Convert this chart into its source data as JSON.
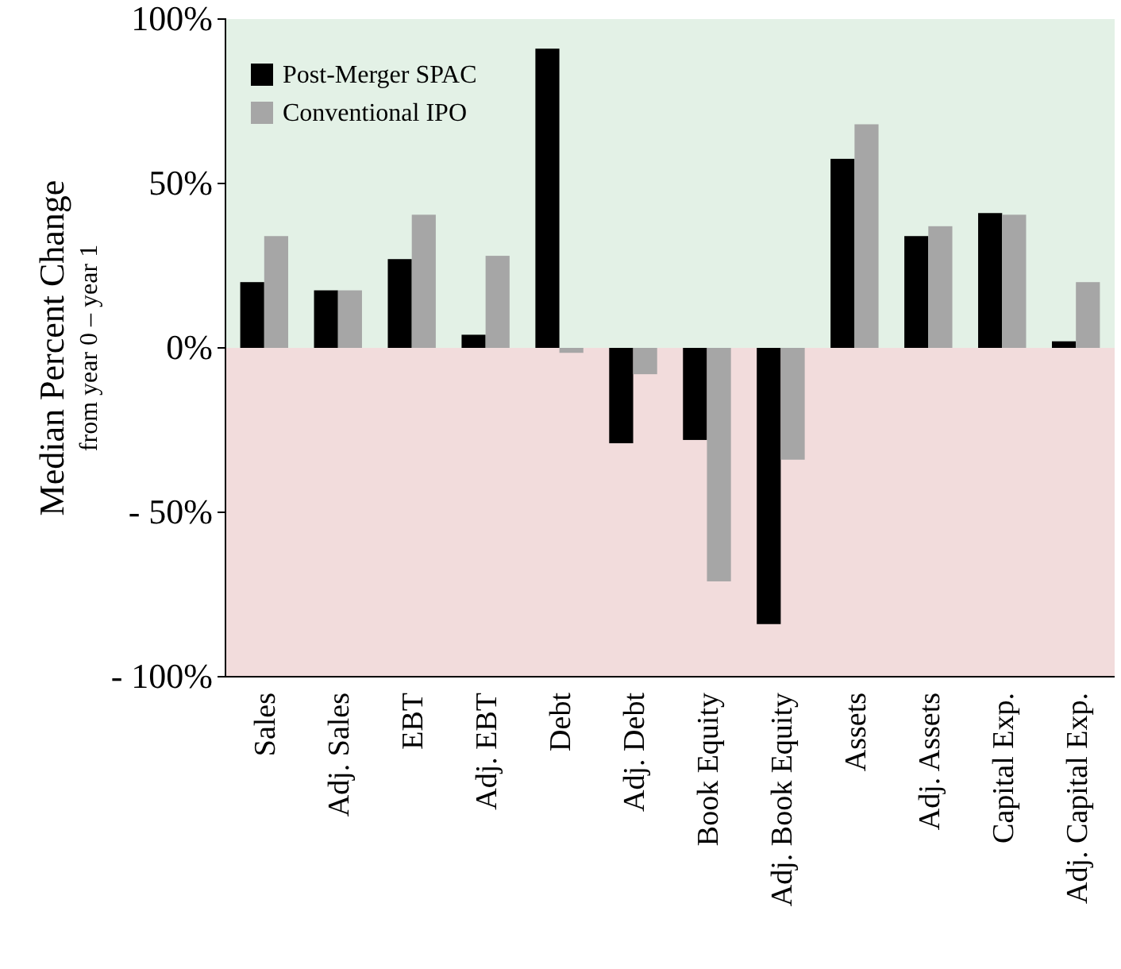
{
  "chart_data": {
    "type": "bar",
    "ylabel": "Median Percent Change\nfrom year 0 – year 1",
    "categories": [
      "Sales",
      "Adj. Sales",
      "EBT",
      "Adj. EBT",
      "Debt",
      "Adj.  Debt",
      "Book Equity",
      "Adj. Book Equity",
      "Assets",
      "Adj. Assets",
      "Capital Exp.",
      "Adj. Capital Exp."
    ],
    "series": [
      {
        "name": "Post-Merger SPAC",
        "color": "#000000",
        "values": [
          20,
          17.5,
          27,
          4,
          91,
          -29,
          -28,
          -84,
          57.5,
          34,
          41,
          2
        ]
      },
      {
        "name": "Conventional IPO",
        "color": "#a6a6a6",
        "values": [
          34,
          17.5,
          40.5,
          28,
          -1.5,
          -8,
          -71,
          -34,
          68,
          37,
          40.5,
          20
        ]
      }
    ],
    "ylim": [
      -100,
      100
    ],
    "yticks": [
      {
        "value": -100,
        "label": "- 100%"
      },
      {
        "value": -50,
        "label": "- 50%"
      },
      {
        "value": 0,
        "label": "0%"
      },
      {
        "value": 50,
        "label": "50%"
      },
      {
        "value": 100,
        "label": "100%"
      }
    ],
    "bands": [
      {
        "axis": "y",
        "from": 0,
        "to": 100,
        "color": "#e3f1e6"
      },
      {
        "axis": "y",
        "from": -100,
        "to": 0,
        "color": "#f2dcdc"
      }
    ],
    "legend": "top left",
    "grid": false
  }
}
